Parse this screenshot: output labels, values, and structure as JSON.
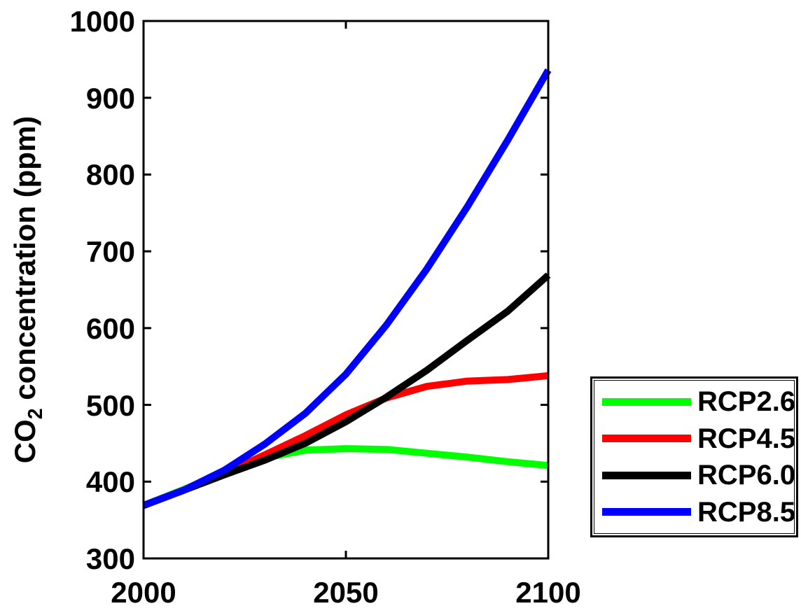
{
  "figure": {
    "background": "#ffffff",
    "axis_color": "#000000"
  },
  "chart_data": {
    "type": "line",
    "title": "",
    "xlabel": "",
    "ylabel": "CO2 concentration (ppm)",
    "ylabel_parts": {
      "main": "CO",
      "sub": "2",
      "rest": " concentration (ppm)"
    },
    "xlim": [
      2000,
      2100
    ],
    "ylim": [
      300,
      1000
    ],
    "xticks": [
      2000,
      2050,
      2100
    ],
    "xtick_labels": [
      "2000",
      "2050",
      "2100"
    ],
    "yticks": [
      300,
      400,
      500,
      600,
      700,
      800,
      900,
      1000
    ],
    "ytick_labels": [
      "300",
      "400",
      "500",
      "600",
      "700",
      "800",
      "900",
      "1000"
    ],
    "grid": false,
    "line_width": 10,
    "legend_position": "outside-right",
    "x": [
      2000,
      2010,
      2020,
      2030,
      2040,
      2050,
      2060,
      2070,
      2080,
      2090,
      2100
    ],
    "series": [
      {
        "name": "RCP2.6",
        "color": "#00ff00",
        "values": [
          369,
          390,
          412,
          431,
          441,
          443,
          442,
          437,
          432,
          426,
          421
        ]
      },
      {
        "name": "RCP4.5",
        "color": "#ff0000",
        "values": [
          369,
          389,
          411,
          435,
          460,
          487,
          509,
          524,
          531,
          533,
          538
        ]
      },
      {
        "name": "RCP6.0",
        "color": "#000000",
        "values": [
          369,
          389,
          409,
          428,
          450,
          478,
          510,
          545,
          584,
          622,
          669
        ]
      },
      {
        "name": "RCP8.5",
        "color": "#0000ff",
        "values": [
          369,
          389,
          415,
          449,
          489,
          540,
          604,
          677,
          758,
          845,
          936
        ]
      }
    ]
  }
}
